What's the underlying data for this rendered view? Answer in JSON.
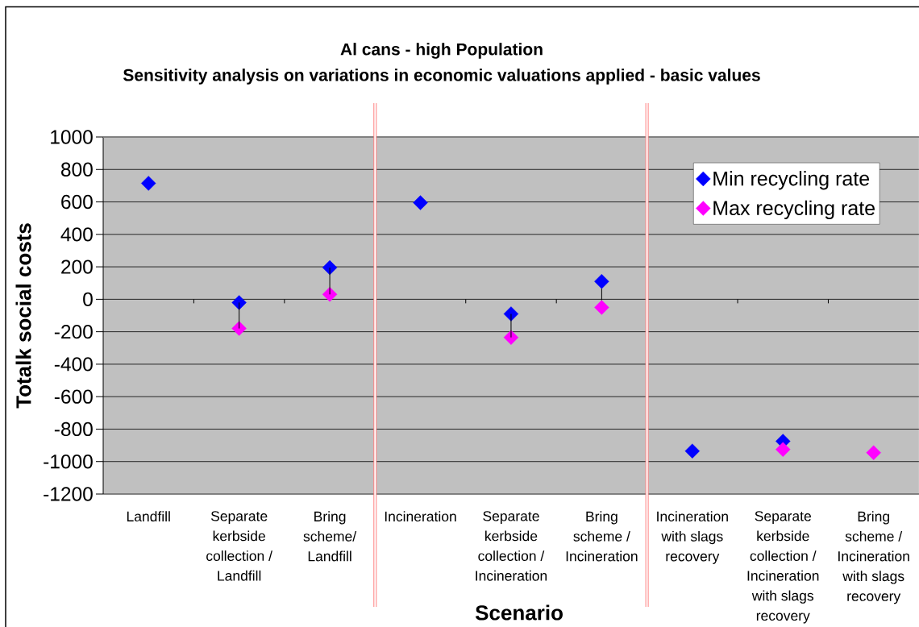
{
  "chart_data": {
    "type": "scatter",
    "title": "Al cans - high Population",
    "subtitle": "Sensitivity analysis on variations in economic valuations applied - basic values",
    "xlabel": "Scenario",
    "ylabel": "Totalk social costs",
    "categories": [
      "Landfill",
      "Separate kerbside collection / Landfill",
      "Bring scheme/ Landfill",
      "Incineration",
      "Separate kerbside collection / Incineration",
      "Bring scheme / Incineration",
      "Incineration with slags recovery",
      "Separate kerbside collection / Incineration with slags recovery",
      "Bring scheme / Incineration with slags recovery"
    ],
    "series": [
      {
        "name": "Min recycling rate",
        "color": "#0000ff",
        "values": [
          715,
          -20,
          195,
          595,
          -90,
          110,
          -935,
          -875,
          null
        ]
      },
      {
        "name": "Max recycling rate",
        "color": "#ff00ff",
        "values": [
          null,
          -180,
          30,
          null,
          -235,
          -50,
          null,
          -925,
          -945
        ]
      }
    ],
    "ylim": [
      -1200,
      1000
    ],
    "yticks": [
      -1200,
      -1000,
      -800,
      -600,
      -400,
      -200,
      0,
      200,
      400,
      600,
      800,
      1000
    ],
    "grid": "y",
    "legend": "top right",
    "marker": "diamond"
  }
}
